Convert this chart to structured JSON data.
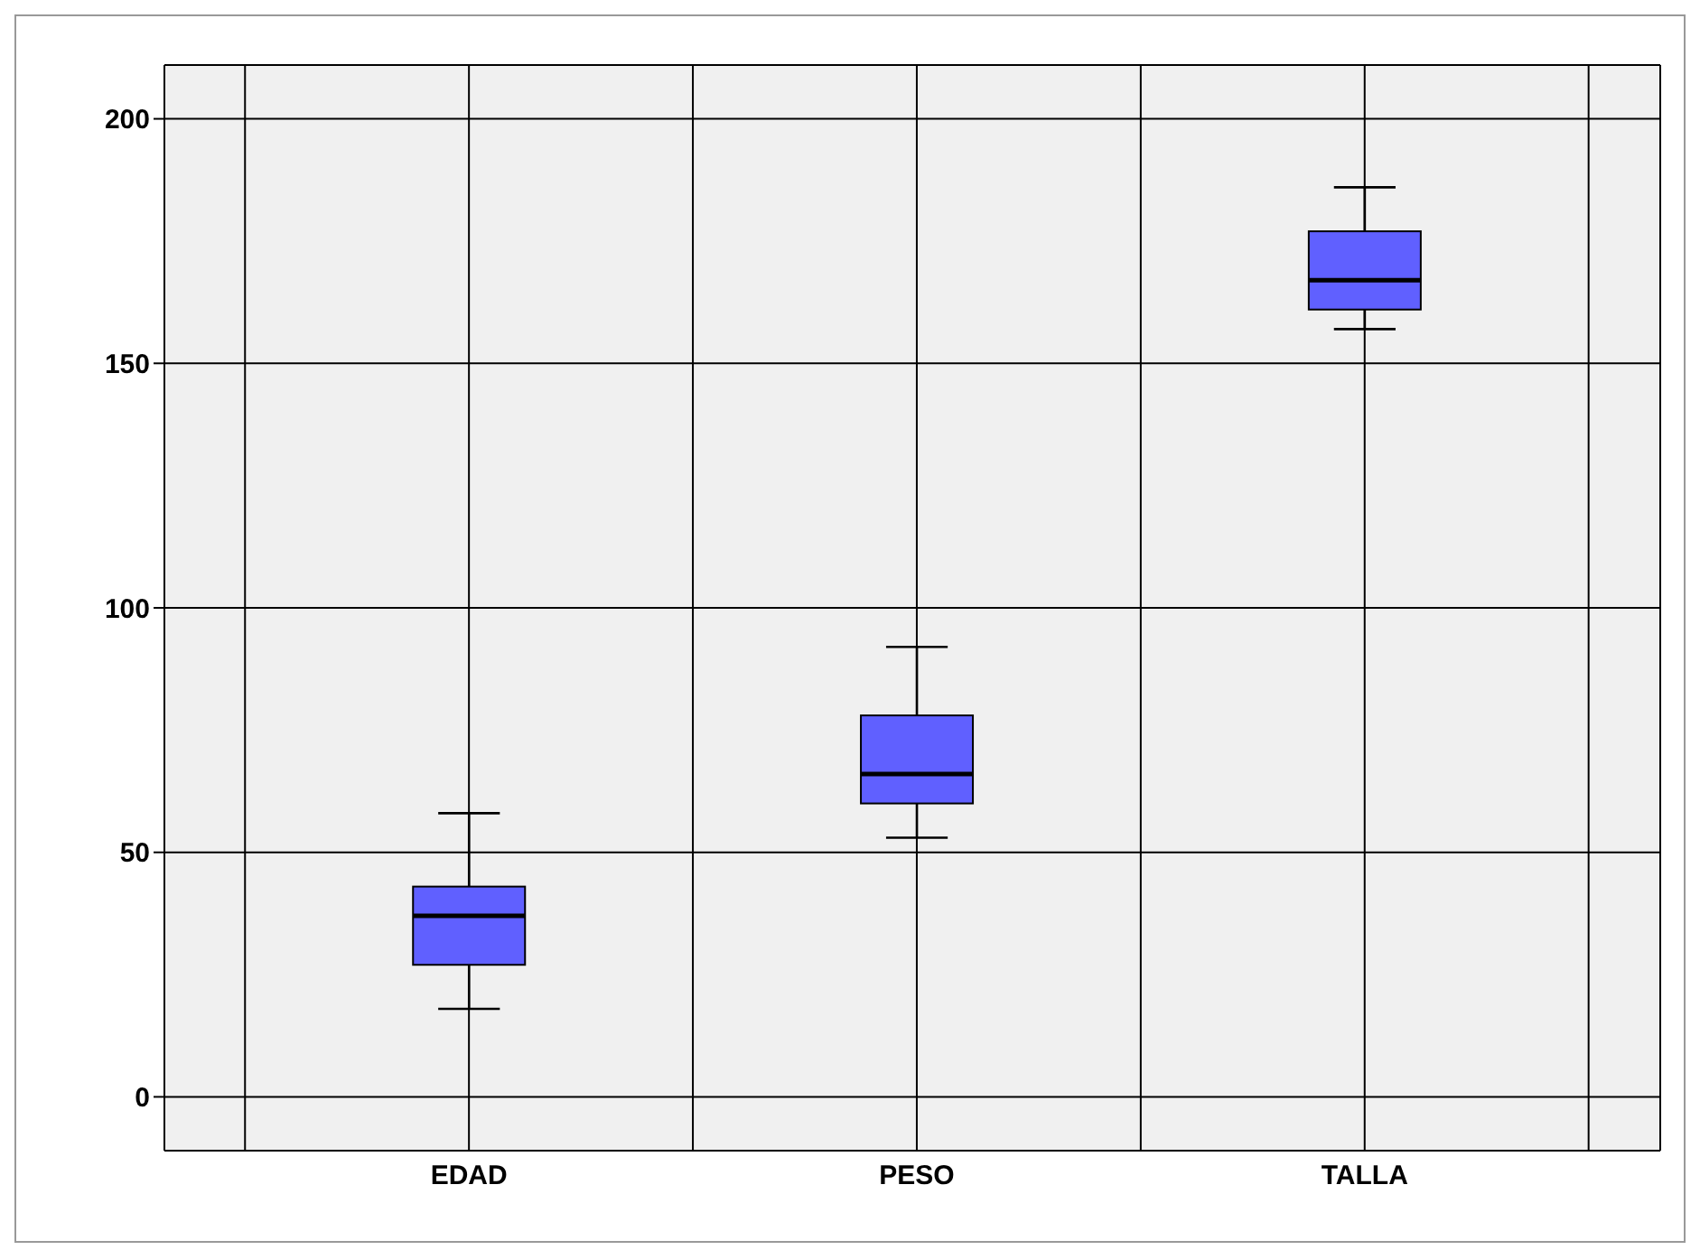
{
  "chart_data": {
    "type": "box",
    "categories": [
      "EDAD",
      "PESO",
      "TALLA"
    ],
    "boxes": [
      {
        "low": 18,
        "q1": 27,
        "median": 37,
        "q3": 43,
        "high": 58
      },
      {
        "low": 53,
        "q1": 60,
        "median": 66,
        "q3": 78,
        "high": 92
      },
      {
        "low": 157,
        "q1": 161,
        "median": 167,
        "q3": 177,
        "high": 186
      }
    ],
    "color": "#6060ff",
    "ylim": [
      -11,
      211
    ],
    "yticks": [
      0,
      50,
      100,
      150,
      200
    ],
    "grid": true
  }
}
